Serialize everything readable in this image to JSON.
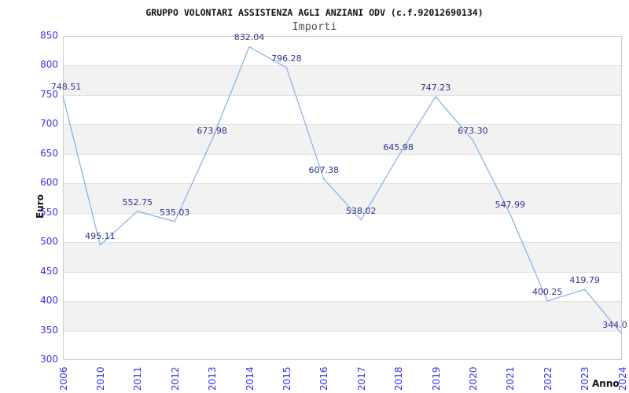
{
  "title": "GRUPPO VOLONTARI ASSISTENZA AGLI ANZIANI ODV (c.f.92012690134)",
  "subtitle": "Importi",
  "chart_data": {
    "type": "line",
    "title": "GRUPPO VOLONTARI ASSISTENZA AGLI ANZIANI ODV (c.f.92012690134)",
    "subtitle": "Importi",
    "xlabel": "Anno",
    "ylabel": "Euro",
    "categories": [
      "2006",
      "2010",
      "2011",
      "2012",
      "2013",
      "2014",
      "2015",
      "2016",
      "2017",
      "2018",
      "2019",
      "2020",
      "2021",
      "2022",
      "2023",
      "2024"
    ],
    "series": [
      {
        "name": "Importi",
        "values": [
          748.51,
          495.11,
          552.75,
          535.03,
          673.98,
          832.04,
          796.28,
          607.38,
          538.02,
          645.98,
          747.23,
          673.3,
          547.99,
          400.25,
          419.79,
          344.0
        ],
        "labels": [
          "748.51",
          "495.11",
          "552.75",
          "535.03",
          "673.98",
          "832.04",
          "796.28",
          "607.38",
          "538.02",
          "645.98",
          "747.23",
          "673.30",
          "547.99",
          "400.25",
          "419.79",
          "344.0"
        ]
      }
    ],
    "ylim": [
      300,
      850
    ],
    "ytick_step": 50,
    "yticks": [
      300,
      350,
      400,
      450,
      500,
      550,
      600,
      650,
      700,
      750,
      800,
      850
    ],
    "legend": "none",
    "grid": "alternating-horizontal-bands",
    "colors": {
      "line": "#8ab5e8",
      "point_label": "#31318f",
      "tick_label": "#3333e6",
      "band_light": "#ffffff",
      "band_dark": "#f2f2f2",
      "gridline": "#e2e2e2",
      "plot_border": "#cccccc",
      "title": "#111111",
      "subtitle": "#555555"
    }
  }
}
